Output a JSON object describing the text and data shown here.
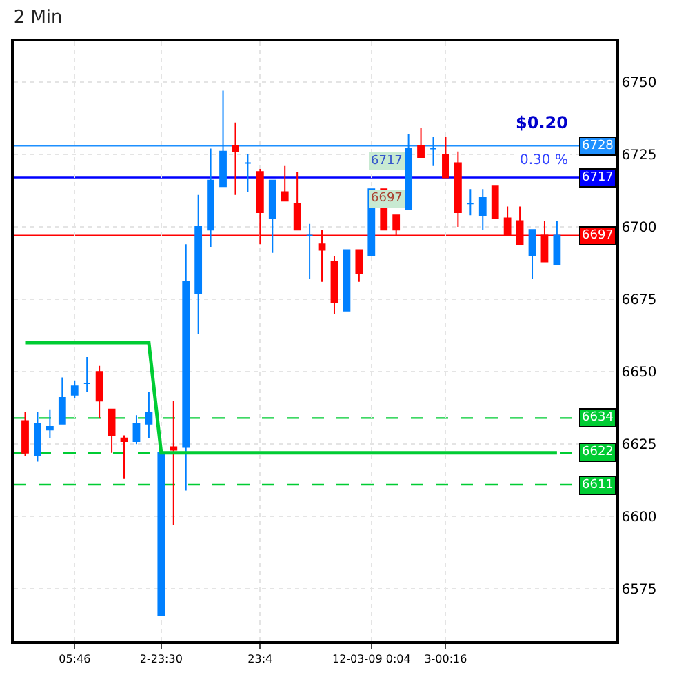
{
  "chart_data": {
    "type": "candlestick",
    "title": "2 Min",
    "categories": [
      null,
      null,
      null,
      null,
      "05:46",
      null,
      null,
      null,
      null,
      null,
      null,
      "2-23:30",
      null,
      null,
      null,
      null,
      null,
      null,
      null,
      "23:4",
      null,
      null,
      null,
      null,
      null,
      null,
      null,
      null,
      "12-03-09 0:04",
      null,
      null,
      null,
      null,
      null,
      "3-00:16",
      null,
      null,
      null,
      null,
      null,
      null,
      null,
      null,
      null
    ],
    "ohlc": [
      [
        6633,
        6636,
        6621,
        6622
      ],
      [
        6621,
        6636,
        6619,
        6632
      ],
      [
        6630,
        6637,
        6627,
        6631
      ],
      [
        6632,
        6648,
        6632,
        6641
      ],
      [
        6642,
        6647,
        6641,
        6645
      ],
      [
        6646,
        6655,
        6643,
        6646
      ],
      [
        6650,
        6652,
        6634,
        6640
      ],
      [
        6637,
        6637,
        6622,
        6628
      ],
      [
        6627,
        6628,
        6613,
        6626
      ],
      [
        6626,
        6635,
        6625,
        6632
      ],
      [
        6632,
        6643,
        6627,
        6636
      ],
      [
        6566,
        6622,
        6566,
        6622
      ],
      [
        6624,
        6640,
        6597,
        6623
      ],
      [
        6624,
        6694,
        6609,
        6681
      ],
      [
        6677,
        6711,
        6663,
        6700
      ],
      [
        6699,
        6727,
        6693,
        6716
      ],
      [
        6714,
        6747,
        6714,
        6726
      ],
      [
        6728,
        6736,
        6711,
        6726
      ],
      [
        6722,
        6725,
        6712,
        6722
      ],
      [
        6719,
        6720,
        6694,
        6705
      ],
      [
        6703,
        6716,
        6691,
        6716
      ],
      [
        6712,
        6721,
        6709,
        6709
      ],
      [
        6708,
        6719,
        6699,
        6699
      ],
      [
        6697,
        6701,
        6682,
        6697
      ],
      [
        6694,
        6699,
        6681,
        6692
      ],
      [
        6688,
        6690,
        6670,
        6674
      ],
      [
        6671,
        6692,
        6671,
        6692
      ],
      [
        6692,
        6692,
        6681,
        6684
      ],
      [
        6690,
        6713,
        6690,
        6713
      ],
      [
        6713,
        6713,
        6699,
        6699
      ],
      [
        6704,
        6704,
        6697,
        6699
      ],
      [
        6706,
        6732,
        6706,
        6727
      ],
      [
        6728,
        6734,
        6724,
        6724
      ],
      [
        6727,
        6731,
        6721,
        6727
      ],
      [
        6725,
        6731,
        6717,
        6717
      ],
      [
        6722,
        6726,
        6700,
        6705
      ],
      [
        6708,
        6713,
        6704,
        6708
      ],
      [
        6704,
        6713,
        6699,
        6710
      ],
      [
        6714,
        6714,
        6703,
        6703
      ],
      [
        6703,
        6707,
        6697,
        6697
      ],
      [
        6702,
        6707,
        6694,
        6694
      ],
      [
        6690,
        6699,
        6682,
        6699
      ],
      [
        6697,
        6702,
        6688,
        6688
      ],
      [
        6687,
        6702,
        6687,
        6697
      ]
    ],
    "colors": [
      "#ff0000",
      "#0080ff",
      "#0080ff",
      "#0080ff",
      "#0080ff",
      "#0080ff",
      "#ff0000",
      "#ff0000",
      "#ff0000",
      "#0080ff",
      "#0080ff",
      "#0080ff",
      "#ff0000",
      "#0080ff",
      "#0080ff",
      "#0080ff",
      "#0080ff",
      "#ff0000",
      "#0080ff",
      "#ff0000",
      "#0080ff",
      "#ff0000",
      "#ff0000",
      "#0080ff",
      "#ff0000",
      "#ff0000",
      "#0080ff",
      "#ff0000",
      "#0080ff",
      "#ff0000",
      "#ff0000",
      "#0080ff",
      "#ff0000",
      "#0080ff",
      "#ff0000",
      "#ff0000",
      "#0080ff",
      "#0080ff",
      "#ff0000",
      "#ff0000",
      "#ff0000",
      "#0080ff",
      "#ff0000",
      "#0080ff"
    ],
    "series": [
      {
        "type": "line",
        "color": "#00cc33",
        "values": [
          6660,
          6660,
          6660,
          6660,
          6660,
          6660,
          6660,
          6660,
          6660,
          6660,
          6660,
          6622,
          6622,
          6622,
          6622,
          6622,
          6622,
          6622,
          6622,
          6622,
          6622,
          6622,
          6622,
          6622,
          6622,
          6622,
          6622,
          6622,
          6622,
          6622,
          6622,
          6622,
          6622,
          6622,
          6622,
          6622,
          6622,
          6622,
          6622,
          6622,
          6622,
          6622,
          6622,
          6622
        ]
      }
    ],
    "ylim": [
      6557,
      6764
    ],
    "yticks": [
      6575,
      6600,
      6625,
      6650,
      6675,
      6700,
      6725,
      6750
    ],
    "grid": true,
    "ref_lines": [
      {
        "axis": "y",
        "value": 6728,
        "label": "6728",
        "color": "#1e90ff"
      },
      {
        "axis": "y",
        "value": 6717,
        "label": "6717",
        "color": "#0000ff"
      },
      {
        "axis": "y",
        "value": 6697,
        "label": "6697",
        "color": "#ff0000"
      },
      {
        "axis": "y",
        "value": 6634,
        "label": "6634",
        "color": "#00cc33",
        "line_style": "dashed"
      },
      {
        "axis": "y",
        "value": 6622,
        "label": "6622",
        "color": "#00cc33",
        "line_style": "dashed"
      },
      {
        "axis": "y",
        "value": 6611,
        "label": "6611",
        "color": "#00cc33",
        "line_style": "dashed"
      }
    ],
    "annotations": [
      "$0.20",
      "0.30 %",
      "6717",
      "6697"
    ]
  }
}
